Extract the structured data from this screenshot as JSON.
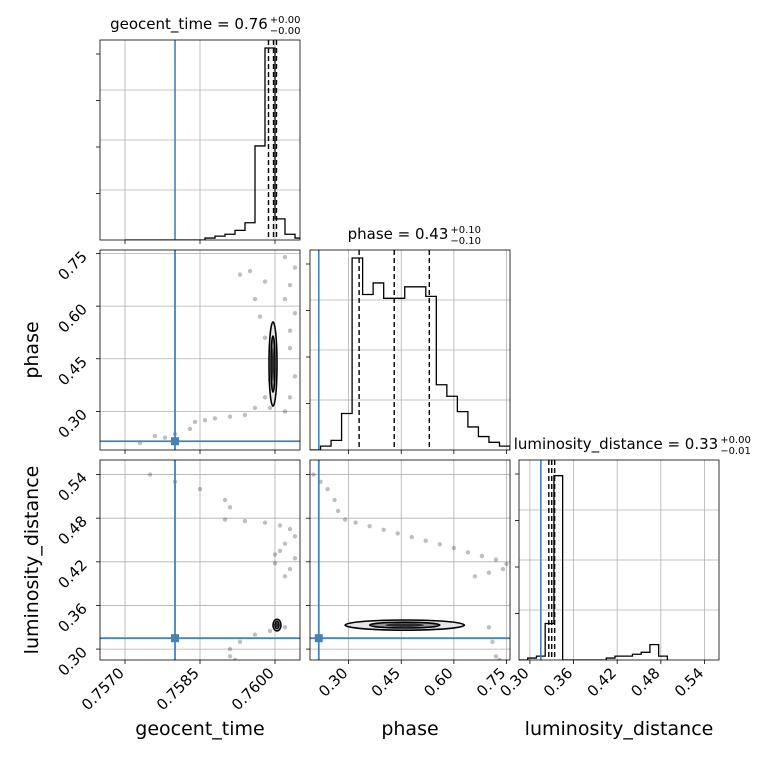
{
  "truth_color": "#4682b4",
  "chart_data": {
    "type": "corner",
    "parameters": [
      "geocent_time",
      "phase",
      "luminosity_distance"
    ],
    "grid": true,
    "truths": {
      "geocent_time": 0.758,
      "phase": 0.215,
      "luminosity_distance": 0.315
    },
    "titles": [
      {
        "param": "geocent_time",
        "text": "geocent_time = 0.76",
        "sup": "+0.00",
        "sub": "−0.00"
      },
      {
        "param": "phase",
        "text": "phase = 0.43",
        "sup": "+0.10",
        "sub": "−0.10"
      },
      {
        "param": "luminosity_distance",
        "text": "luminosity_distance = 0.33",
        "sup": "+0.00",
        "sub": "−0.01"
      }
    ],
    "axis_ranges": {
      "geocent_time": [
        0.7565,
        0.7605
      ],
      "phase": [
        0.19,
        0.76
      ],
      "luminosity_distance": [
        0.285,
        0.56
      ]
    },
    "ticks": {
      "geocent_time": [
        0.757,
        0.7585,
        0.76
      ],
      "phase": [
        0.3,
        0.45,
        0.6,
        0.75
      ],
      "luminosity_distance": [
        0.3,
        0.36,
        0.42,
        0.48,
        0.54
      ]
    },
    "tick_labels": {
      "geocent_time": [
        "0.7570",
        "0.7585",
        "0.7600"
      ],
      "phase": [
        "0.30",
        "0.45",
        "0.60",
        "0.75"
      ],
      "luminosity_distance": [
        "0.30",
        "0.36",
        "0.42",
        "0.48",
        "0.54"
      ]
    },
    "xlabels": [
      "geocent_time",
      "phase",
      "luminosity_distance"
    ],
    "ylabels": [
      "phase",
      "luminosity_distance"
    ],
    "histograms": {
      "geocent_time": {
        "edges": [
          0.757,
          0.7572,
          0.7574,
          0.7576,
          0.7578,
          0.758,
          0.7582,
          0.7584,
          0.7586,
          0.7588,
          0.759,
          0.7592,
          0.7594,
          0.7596,
          0.7598,
          0.76,
          0.7602,
          0.7604,
          0.7606
        ],
        "counts": [
          0,
          0,
          0,
          0,
          0,
          0,
          0,
          0,
          0.01,
          0.02,
          0.03,
          0.05,
          0.09,
          0.49,
          1.0,
          0.11,
          0.03,
          0.01
        ],
        "quantiles": [
          0.75987,
          0.75997,
          0.76003
        ]
      },
      "phase": {
        "edges": [
          0.19,
          0.22,
          0.25,
          0.28,
          0.31,
          0.34,
          0.37,
          0.4,
          0.43,
          0.46,
          0.49,
          0.52,
          0.55,
          0.58,
          0.61,
          0.64,
          0.67,
          0.7,
          0.73,
          0.76
        ],
        "counts": [
          0,
          0.02,
          0.05,
          0.19,
          1.0,
          0.81,
          0.87,
          0.79,
          0.79,
          0.85,
          0.85,
          0.8,
          0.34,
          0.28,
          0.2,
          0.12,
          0.07,
          0.04,
          0.02
        ],
        "quantiles": [
          0.33,
          0.43,
          0.53
        ]
      },
      "luminosity_distance": {
        "edges": [
          0.285,
          0.297,
          0.309,
          0.321,
          0.333,
          0.345,
          0.357,
          0.369,
          0.381,
          0.393,
          0.405,
          0.417,
          0.429,
          0.441,
          0.453,
          0.465,
          0.477,
          0.489
        ],
        "counts": [
          0,
          0.01,
          0.02,
          0.19,
          0.96,
          0,
          0,
          0,
          0,
          0,
          0.01,
          0.02,
          0.02,
          0.03,
          0.04,
          0.08,
          0.02
        ],
        "quantiles": [
          0.326,
          0.33,
          0.334
        ]
      }
    },
    "contours": {
      "phase_vs_geocent_time": {
        "center": [
          0.75996,
          0.435
        ],
        "inner": [
          4e-05,
          0.08
        ],
        "outer": [
          8e-05,
          0.12
        ]
      },
      "luminosity_distance_vs_geocent_time": {
        "center": [
          0.76004,
          0.333
        ],
        "inner": [
          4e-05,
          0.005
        ],
        "outer": [
          8e-05,
          0.008
        ]
      },
      "luminosity_distance_vs_phase": {
        "center": [
          0.46,
          0.333
        ],
        "inner": [
          0.1,
          0.004
        ],
        "outer": [
          0.17,
          0.007
        ]
      }
    },
    "samples": {
      "phase_vs_geocent_time": [
        [
          0.7593,
          0.69
        ],
        [
          0.7595,
          0.7
        ],
        [
          0.7598,
          0.67
        ],
        [
          0.7596,
          0.62
        ],
        [
          0.7597,
          0.57
        ],
        [
          0.7598,
          0.51
        ],
        [
          0.7599,
          0.45
        ],
        [
          0.7599,
          0.39
        ],
        [
          0.7598,
          0.34
        ],
        [
          0.7596,
          0.31
        ],
        [
          0.7591,
          0.285
        ],
        [
          0.7588,
          0.28
        ],
        [
          0.7584,
          0.27
        ],
        [
          0.7583,
          0.25
        ],
        [
          0.758,
          0.235
        ],
        [
          0.7576,
          0.23
        ],
        [
          0.7573,
          0.21
        ],
        [
          0.7602,
          0.74
        ],
        [
          0.7603,
          0.66
        ],
        [
          0.7604,
          0.58
        ],
        [
          0.7603,
          0.48
        ],
        [
          0.7604,
          0.4
        ],
        [
          0.7603,
          0.34
        ],
        [
          0.7602,
          0.3
        ],
        [
          0.7601,
          0.77
        ],
        [
          0.7604,
          0.71
        ],
        [
          0.7602,
          0.62
        ],
        [
          0.7603,
          0.53
        ],
        [
          0.7599,
          0.31
        ],
        [
          0.7594,
          0.29
        ],
        [
          0.7586,
          0.275
        ],
        [
          0.7578,
          0.225
        ]
      ],
      "luminosity_distance_vs_geocent_time": [
        [
          0.7575,
          0.54
        ],
        [
          0.758,
          0.53
        ],
        [
          0.7585,
          0.52
        ],
        [
          0.759,
          0.505
        ],
        [
          0.7591,
          0.495
        ],
        [
          0.759,
          0.478
        ],
        [
          0.7594,
          0.476
        ],
        [
          0.7598,
          0.474
        ],
        [
          0.7601,
          0.47
        ],
        [
          0.7603,
          0.465
        ],
        [
          0.7604,
          0.455
        ],
        [
          0.7602,
          0.445
        ],
        [
          0.76,
          0.43
        ],
        [
          0.76,
          0.418
        ],
        [
          0.7603,
          0.41
        ],
        [
          0.7602,
          0.4
        ],
        [
          0.7604,
          0.425
        ],
        [
          0.7601,
          0.435
        ],
        [
          0.7596,
          0.32
        ],
        [
          0.7593,
          0.31
        ],
        [
          0.7591,
          0.3
        ],
        [
          0.7591,
          0.29
        ],
        [
          0.7592,
          0.285
        ],
        [
          0.7599,
          0.325
        ],
        [
          0.7602,
          0.33
        ]
      ],
      "luminosity_distance_vs_phase": [
        [
          0.2,
          0.54
        ],
        [
          0.22,
          0.53
        ],
        [
          0.24,
          0.52
        ],
        [
          0.26,
          0.505
        ],
        [
          0.27,
          0.49
        ],
        [
          0.29,
          0.478
        ],
        [
          0.32,
          0.474
        ],
        [
          0.36,
          0.469
        ],
        [
          0.4,
          0.464
        ],
        [
          0.44,
          0.459
        ],
        [
          0.48,
          0.454
        ],
        [
          0.52,
          0.449
        ],
        [
          0.56,
          0.444
        ],
        [
          0.6,
          0.439
        ],
        [
          0.64,
          0.433
        ],
        [
          0.68,
          0.428
        ],
        [
          0.72,
          0.423
        ],
        [
          0.75,
          0.417
        ],
        [
          0.7,
          0.405
        ],
        [
          0.66,
          0.4
        ],
        [
          0.7,
          0.33
        ],
        [
          0.71,
          0.31
        ],
        [
          0.72,
          0.29
        ],
        [
          0.73,
          0.285
        ],
        [
          0.74,
          0.41
        ]
      ]
    }
  }
}
